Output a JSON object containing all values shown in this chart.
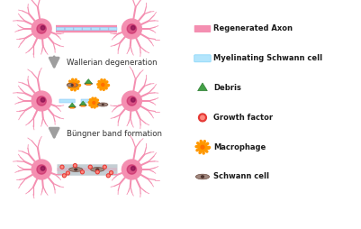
{
  "background_color": "#ffffff",
  "neuron_color": "#f48fb1",
  "neuron_body_color": "#f06292",
  "axon_pink_color": "#f48fb1",
  "axon_blue_color": "#b3e5fc",
  "debris_green": "#2e7d32",
  "debris_green_light": "#43a047",
  "debris_orange": "#ff9800",
  "debris_base_color": "#8d6e63",
  "growth_factor_color": "#e53935",
  "macrophage_color": "#ff9800",
  "macrophage_inner": "#ff6f00",
  "schwann_cell_body": "#a1887f",
  "schwann_cell_inner": "#4e342e",
  "arrow_color": "#9e9e9e",
  "text_color": "#333333",
  "wallerian_text": "Wallerian degeneration",
  "bungner_text": "Büngner band formation",
  "legend_items": [
    {
      "label": "Regenerated Axon",
      "type": "rect",
      "color": "#f48fb1"
    },
    {
      "label": "Myelinating Schwann cell",
      "type": "rect",
      "color": "#b3e5fc"
    },
    {
      "label": "Debris",
      "type": "triangle",
      "color": "#43a047"
    },
    {
      "label": "Growth factor",
      "type": "circle",
      "color": "#e53935"
    },
    {
      "label": "Macrophage",
      "type": "sun",
      "color": "#ff9800"
    },
    {
      "label": "Schwann cell",
      "type": "ellipse",
      "color": "#a1887f"
    }
  ],
  "figsize": [
    4.01,
    2.54
  ],
  "dpi": 100,
  "xlim": [
    0,
    10
  ],
  "ylim": [
    0,
    6.35
  ]
}
